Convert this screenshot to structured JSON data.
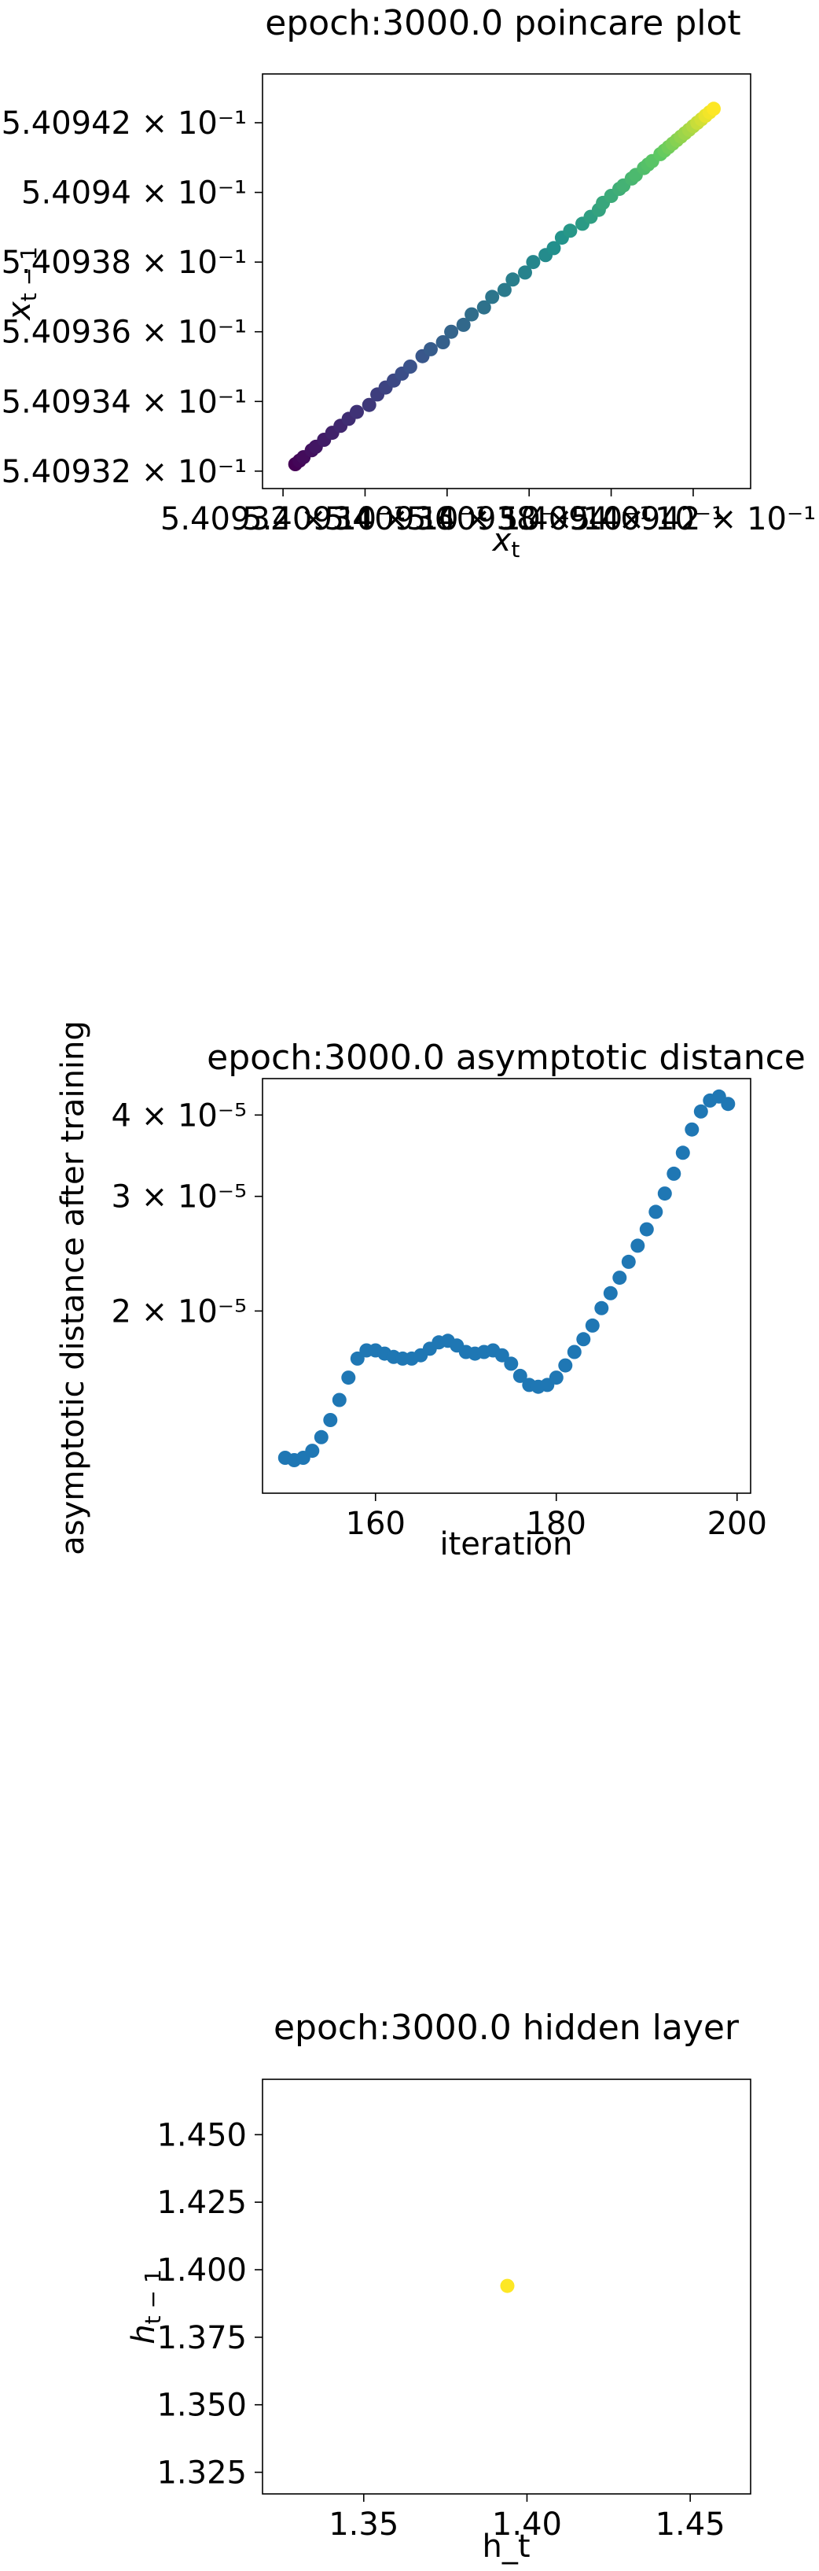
{
  "chart_data": [
    {
      "type": "scatter",
      "title": "epoch:3000.0 poincare plot",
      "xlabel": "x_t",
      "ylabel": "x_{t-1}",
      "colormap": [
        "#440154",
        "#3b528b",
        "#21918c",
        "#5ec962",
        "#fde725"
      ],
      "xlim": [
        0.5409315,
        0.5409434
      ],
      "ylim": [
        0.5409315,
        0.5409434
      ],
      "xticks": [
        {
          "value": 0.540932,
          "label": "5.40932 × 10⁻¹"
        },
        {
          "value": 0.540934,
          "label": "5.40934 × 10⁻¹"
        },
        {
          "value": 0.540936,
          "label": "5.40936 × 10⁻¹"
        },
        {
          "value": 0.540938,
          "label": "5.40938 × 10⁻¹"
        },
        {
          "value": 0.54094,
          "label": "5.4094 × 10⁻¹"
        },
        {
          "value": 0.540942,
          "label": "5.40942 × 10⁻¹"
        }
      ],
      "yticks": [
        {
          "value": 0.540932,
          "label": "5.40932 × 10⁻¹"
        },
        {
          "value": 0.540934,
          "label": "5.40934 × 10⁻¹"
        },
        {
          "value": 0.540936,
          "label": "5.40936 × 10⁻¹"
        },
        {
          "value": 0.540938,
          "label": "5.40938 × 10⁻¹"
        },
        {
          "value": 0.54094,
          "label": "5.4094 × 10⁻¹"
        },
        {
          "value": 0.540942,
          "label": "5.40942 × 10⁻¹"
        }
      ],
      "x": [
        0.5409323,
        0.5409324,
        0.5409325,
        0.5409327,
        0.5409328,
        0.540933,
        0.5409332,
        0.5409334,
        0.5409336,
        0.5409338,
        0.5409341,
        0.5409343,
        0.5409345,
        0.5409347,
        0.5409349,
        0.5409351,
        0.5409354,
        0.5409356,
        0.5409359,
        0.5409361,
        0.5409364,
        0.5409366,
        0.5409369,
        0.5409371,
        0.5409374,
        0.5409376,
        0.5409379,
        0.5409381,
        0.5409384,
        0.5409386,
        0.5409388,
        0.540939,
        0.5409393,
        0.5409395,
        0.5409397,
        0.5409398,
        0.54094,
        0.5409402,
        0.5409403,
        0.5409405,
        0.5409406,
        0.5409408,
        0.5409409,
        0.540941,
        0.5409412,
        0.5409413,
        0.5409414,
        0.5409415,
        0.5409416,
        0.5409417,
        0.5409418,
        0.5409419,
        0.540942,
        0.5409421,
        0.5409421,
        0.5409422,
        0.5409423,
        0.5409423,
        0.5409424,
        0.5409425
      ],
      "y": [
        0.5409322,
        0.5409323,
        0.5409324,
        0.5409326,
        0.5409327,
        0.5409329,
        0.5409331,
        0.5409333,
        0.5409335,
        0.5409337,
        0.5409339,
        0.5409342,
        0.5409344,
        0.5409346,
        0.5409348,
        0.540935,
        0.5409353,
        0.5409355,
        0.5409357,
        0.540936,
        0.5409362,
        0.5409365,
        0.5409367,
        0.540937,
        0.5409372,
        0.5409375,
        0.5409377,
        0.540938,
        0.5409382,
        0.5409384,
        0.5409387,
        0.5409389,
        0.5409391,
        0.5409393,
        0.5409395,
        0.5409397,
        0.5409399,
        0.5409401,
        0.5409402,
        0.5409404,
        0.5409405,
        0.5409407,
        0.5409408,
        0.5409409,
        0.5409411,
        0.5409412,
        0.5409413,
        0.5409414,
        0.5409415,
        0.5409416,
        0.5409417,
        0.5409418,
        0.5409419,
        0.540942,
        0.540942,
        0.5409421,
        0.5409422,
        0.5409422,
        0.5409423,
        0.5409424
      ]
    },
    {
      "type": "scatter",
      "title": "epoch:3000.0 asymptotic distance",
      "xlabel": "iteration",
      "ylabel": "asymptotic distance after training",
      "yscale": "log",
      "color": "#1f77b4",
      "xlim": [
        147.5,
        201.5
      ],
      "ylim": [
        1.05e-05,
        4.55e-05
      ],
      "xticks": [
        {
          "value": 160,
          "label": "160"
        },
        {
          "value": 180,
          "label": "180"
        },
        {
          "value": 200,
          "label": "200"
        }
      ],
      "yticks": [
        {
          "value": 2e-05,
          "label": "2 × 10⁻⁵"
        },
        {
          "value": 3e-05,
          "label": "3 × 10⁻⁵"
        },
        {
          "value": 4e-05,
          "label": "4 × 10⁻⁵"
        }
      ],
      "x": [
        150,
        151,
        152,
        153,
        154,
        155,
        156,
        157,
        158,
        159,
        160,
        161,
        162,
        163,
        164,
        165,
        166,
        167,
        168,
        169,
        170,
        171,
        172,
        173,
        174,
        175,
        176,
        177,
        178,
        179,
        180,
        181,
        182,
        183,
        184,
        185,
        186,
        187,
        188,
        189,
        190,
        191,
        192,
        193,
        194,
        195,
        196,
        197,
        198,
        199
      ],
      "y": [
        1.19e-05,
        1.18e-05,
        1.19e-05,
        1.22e-05,
        1.28e-05,
        1.36e-05,
        1.46e-05,
        1.58e-05,
        1.69e-05,
        1.74e-05,
        1.74e-05,
        1.72e-05,
        1.7e-05,
        1.69e-05,
        1.69e-05,
        1.71e-05,
        1.75e-05,
        1.79e-05,
        1.8e-05,
        1.77e-05,
        1.73e-05,
        1.72e-05,
        1.73e-05,
        1.74e-05,
        1.71e-05,
        1.66e-05,
        1.59e-05,
        1.54e-05,
        1.53e-05,
        1.54e-05,
        1.58e-05,
        1.65e-05,
        1.73e-05,
        1.81e-05,
        1.9e-05,
        2.02e-05,
        2.13e-05,
        2.25e-05,
        2.38e-05,
        2.52e-05,
        2.67e-05,
        2.84e-05,
        3.03e-05,
        3.25e-05,
        3.5e-05,
        3.8e-05,
        4.05e-05,
        4.21e-05,
        4.27e-05,
        4.16e-05
      ]
    },
    {
      "type": "scatter",
      "title": "epoch:3000.0 hidden layer",
      "xlabel": "h_t",
      "ylabel": "h_{t-1}",
      "color": "#fde725",
      "xlim": [
        1.319,
        1.4685
      ],
      "ylim": [
        1.317,
        1.4705
      ],
      "xticks": [
        {
          "value": 1.35,
          "label": "1.35"
        },
        {
          "value": 1.4,
          "label": "1.40"
        },
        {
          "value": 1.45,
          "label": "1.45"
        }
      ],
      "yticks": [
        {
          "value": 1.325,
          "label": "1.325"
        },
        {
          "value": 1.35,
          "label": "1.350"
        },
        {
          "value": 1.375,
          "label": "1.375"
        },
        {
          "value": 1.4,
          "label": "1.400"
        },
        {
          "value": 1.425,
          "label": "1.425"
        },
        {
          "value": 1.45,
          "label": "1.450"
        }
      ],
      "x": [
        1.394
      ],
      "y": [
        1.394
      ]
    }
  ]
}
